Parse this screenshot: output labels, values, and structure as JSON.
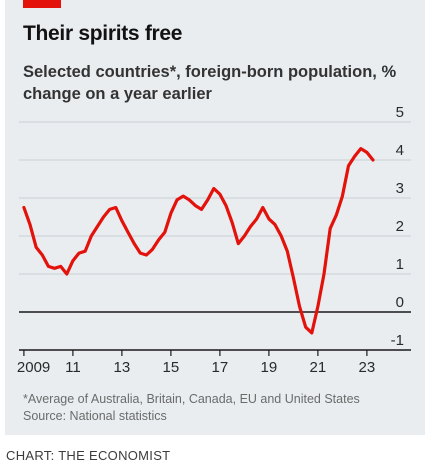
{
  "header": {
    "title": "Their spirits free",
    "subtitle": "Selected countries*, foreign-born population, % change on a year earlier"
  },
  "footer": {
    "note": "*Average of Australia, Britain, Canada, EU and United States",
    "source": "Source: National statistics",
    "credit": "CHART: THE ECONOMIST"
  },
  "colors": {
    "line": "#e3120b",
    "background": "#e9edf0",
    "accent": "#e3120b"
  },
  "chart_data": {
    "type": "line",
    "title": "Their spirits free",
    "subtitle": "Selected countries*, foreign-born population, % change on a year earlier",
    "xlabel": "",
    "ylabel": "",
    "xlim": [
      2008.8,
      2024.8
    ],
    "ylim": [
      -1,
      5
    ],
    "yticks": [
      -1,
      0,
      1,
      2,
      3,
      4,
      5
    ],
    "xtick_labels": [
      "2009",
      "11",
      "13",
      "15",
      "17",
      "19",
      "21",
      "23"
    ],
    "xtick_values": [
      2009,
      2011,
      2013,
      2015,
      2017,
      2019,
      2021,
      2023
    ],
    "ytick_labels": [
      "-1",
      "0",
      "1",
      "2",
      "3",
      "4",
      "5"
    ],
    "grid": true,
    "series": [
      {
        "x": [
          2009.0,
          2009.25,
          2009.5,
          2009.75,
          2010.0,
          2010.25,
          2010.5,
          2010.75,
          2011.0,
          2011.25,
          2011.5,
          2011.75,
          2012.0,
          2012.25,
          2012.5,
          2012.75,
          2013.0,
          2013.25,
          2013.5,
          2013.75,
          2014.0,
          2014.25,
          2014.5,
          2014.75,
          2015.0,
          2015.25,
          2015.5,
          2015.75,
          2016.0,
          2016.25,
          2016.5,
          2016.75,
          2017.0,
          2017.25,
          2017.5,
          2017.75,
          2018.0,
          2018.25,
          2018.5,
          2018.75,
          2019.0,
          2019.25,
          2019.5,
          2019.75,
          2020.0,
          2020.25,
          2020.5,
          2020.75,
          2021.0,
          2021.25,
          2021.5,
          2021.75,
          2022.0,
          2022.25,
          2022.5,
          2022.75,
          2023.0,
          2023.25
        ],
        "values": [
          2.75,
          2.3,
          1.7,
          1.5,
          1.2,
          1.15,
          1.2,
          1.0,
          1.35,
          1.55,
          1.6,
          2.0,
          2.25,
          2.5,
          2.7,
          2.75,
          2.4,
          2.1,
          1.8,
          1.55,
          1.5,
          1.65,
          1.9,
          2.1,
          2.6,
          2.95,
          3.05,
          2.95,
          2.8,
          2.7,
          2.95,
          3.25,
          3.1,
          2.8,
          2.35,
          1.8,
          2.0,
          2.25,
          2.45,
          2.75,
          2.45,
          2.3,
          2.0,
          1.6,
          0.9,
          0.15,
          -0.4,
          -0.55,
          0.15,
          1.0,
          2.2,
          2.55,
          3.05,
          3.85,
          4.1,
          4.3,
          4.2,
          4.0
        ]
      }
    ]
  }
}
